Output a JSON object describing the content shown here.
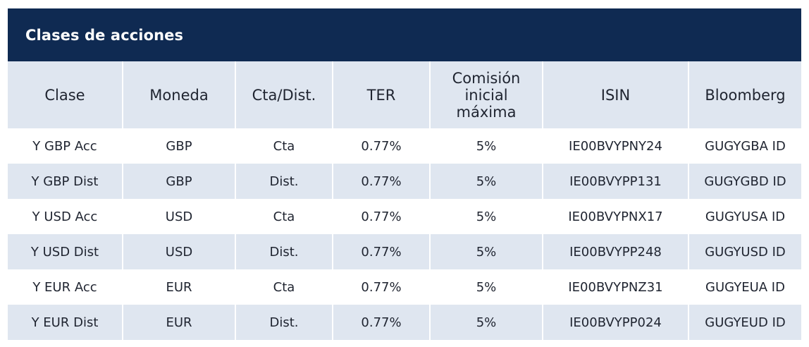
{
  "table": {
    "title": "Clases de acciones",
    "headers": [
      {
        "label": "Clase"
      },
      {
        "label": "Moneda"
      },
      {
        "label": "Cta/Dist."
      },
      {
        "label": "TER"
      },
      {
        "label": "Comisión inicial máxima",
        "lines": [
          "Comisión",
          "inicial",
          "máxima"
        ]
      },
      {
        "label": "ISIN"
      },
      {
        "label": "Bloomberg"
      }
    ],
    "rows": [
      [
        "Y GBP Acc",
        "GBP",
        "Cta",
        "0.77%",
        "5%",
        "IE00BVYPNY24",
        "GUGYGBA ID"
      ],
      [
        "Y GBP Dist",
        "GBP",
        "Dist.",
        "0.77%",
        "5%",
        "IE00BVYPP131",
        "GUGYGBD ID"
      ],
      [
        "Y USD Acc",
        "USD",
        "Cta",
        "0.77%",
        "5%",
        "IE00BVYPNX17",
        "GUGYUSA ID"
      ],
      [
        "Y USD Dist",
        "USD",
        "Dist.",
        "0.77%",
        "5%",
        "IE00BVYPP248",
        "GUGYUSD ID"
      ],
      [
        "Y EUR Acc",
        "EUR",
        "Cta",
        "0.77%",
        "5%",
        "IE00BVYPNZ31",
        "GUGYEUA ID"
      ],
      [
        "Y EUR Dist",
        "EUR",
        "Dist.",
        "0.77%",
        "5%",
        "IE00BVYPP024",
        "GUGYEUD ID"
      ]
    ]
  },
  "colors": {
    "title_background": "#0f2a52",
    "title_text": "#ffffff",
    "header_background": "#dfe6f0",
    "stripe_background": "#dfe6f0",
    "text": "#1f2430"
  }
}
